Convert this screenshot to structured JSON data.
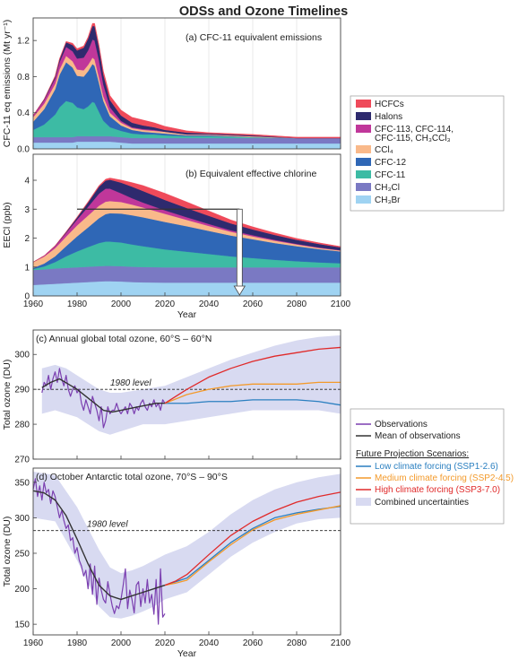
{
  "figure": {
    "title": "ODSs and Ozone Timelines",
    "xlabel": "Year",
    "xticks": [
      "1960",
      "1980",
      "2000",
      "2020",
      "2040",
      "2060",
      "2080",
      "2100"
    ]
  },
  "legend_top": [
    {
      "label": "HCFCs",
      "color": "#ef4a5a"
    },
    {
      "label": "Halons",
      "color": "#2e2a6e"
    },
    {
      "label": "CFC-113, CFC-114,",
      "label2": "CFC-115, CH₃CCl₃",
      "color": "#c0379a"
    },
    {
      "label": "CCl₄",
      "color": "#f9b98a"
    },
    {
      "label": "CFC-12",
      "color": "#2f67b6"
    },
    {
      "label": "CFC-11",
      "color": "#3dbba4"
    },
    {
      "label": "CH₃Cl",
      "color": "#7a79c3"
    },
    {
      "label": "CH₃Br",
      "color": "#9fd3f2"
    }
  ],
  "legend_bottom": {
    "observations": "Observations",
    "mean": "Mean of observations",
    "future_header": "Future Projection Scenarios:",
    "low": "Low climate forcing (SSP1-2.6)",
    "medium": "Medium climate forcing (SSP2-4.5)",
    "high": "High climate forcing (SSP3-7.0)",
    "uncert": "Combined uncertainties"
  },
  "colors": {
    "observations": "#7b3fb0",
    "mean": "#333333",
    "low": "#2a7fc0",
    "medium": "#f39a2b",
    "high": "#e02a2a",
    "uncert": "#d8daf1"
  },
  "chart_data": [
    {
      "id": "a",
      "type": "area",
      "title": "(a) CFC-11 equivalent emissions",
      "ylabel": "CFC-11 eq emissions (Mt yr⁻¹)",
      "xlim": [
        1960,
        2100
      ],
      "ylim": [
        0,
        1.45
      ],
      "yticks": [
        "0.0",
        "0.4",
        "0.8",
        "1.2"
      ],
      "x": [
        1960,
        1965,
        1970,
        1972,
        1975,
        1978,
        1980,
        1983,
        1985,
        1987,
        1988,
        1990,
        1992,
        1995,
        2000,
        2005,
        2010,
        2015,
        2020,
        2030,
        2040,
        2060,
        2080,
        2100
      ],
      "series": [
        {
          "name": "CH₃Br",
          "values": [
            0.07,
            0.07,
            0.07,
            0.07,
            0.07,
            0.07,
            0.08,
            0.08,
            0.08,
            0.08,
            0.08,
            0.08,
            0.08,
            0.08,
            0.07,
            0.06,
            0.06,
            0.06,
            0.06,
            0.06,
            0.06,
            0.06,
            0.06,
            0.06
          ]
        },
        {
          "name": "CH₃Cl",
          "values": [
            0.06,
            0.06,
            0.06,
            0.06,
            0.06,
            0.06,
            0.06,
            0.06,
            0.06,
            0.06,
            0.06,
            0.06,
            0.06,
            0.06,
            0.06,
            0.06,
            0.06,
            0.06,
            0.06,
            0.06,
            0.06,
            0.06,
            0.06,
            0.06
          ]
        },
        {
          "name": "CFC-11",
          "values": [
            0.08,
            0.14,
            0.25,
            0.33,
            0.4,
            0.38,
            0.32,
            0.3,
            0.33,
            0.38,
            0.37,
            0.27,
            0.17,
            0.1,
            0.07,
            0.05,
            0.04,
            0.04,
            0.03,
            0.02,
            0.02,
            0.01,
            0.0,
            0.0
          ]
        },
        {
          "name": "CFC-12",
          "values": [
            0.09,
            0.17,
            0.28,
            0.36,
            0.43,
            0.39,
            0.35,
            0.36,
            0.39,
            0.42,
            0.41,
            0.32,
            0.22,
            0.12,
            0.06,
            0.04,
            0.03,
            0.02,
            0.02,
            0.01,
            0.01,
            0.0,
            0.0,
            0.0
          ]
        },
        {
          "name": "CCl₄",
          "values": [
            0.05,
            0.06,
            0.06,
            0.06,
            0.07,
            0.07,
            0.07,
            0.07,
            0.07,
            0.07,
            0.07,
            0.06,
            0.05,
            0.04,
            0.03,
            0.02,
            0.02,
            0.02,
            0.02,
            0.01,
            0.01,
            0.01,
            0.0,
            0.0
          ]
        },
        {
          "name": "CFC-113, CFC-114, CFC-115, CH₃CCl₃",
          "values": [
            0.02,
            0.04,
            0.06,
            0.08,
            0.1,
            0.11,
            0.12,
            0.14,
            0.16,
            0.2,
            0.21,
            0.19,
            0.13,
            0.06,
            0.02,
            0.01,
            0.01,
            0.01,
            0.0,
            0.0,
            0.0,
            0.0,
            0.0,
            0.0
          ]
        },
        {
          "name": "Halons",
          "values": [
            0.0,
            0.01,
            0.02,
            0.03,
            0.05,
            0.07,
            0.09,
            0.11,
            0.13,
            0.15,
            0.16,
            0.14,
            0.11,
            0.08,
            0.06,
            0.05,
            0.04,
            0.03,
            0.02,
            0.02,
            0.01,
            0.01,
            0.0,
            0.0
          ]
        },
        {
          "name": "HCFCs",
          "values": [
            0.0,
            0.0,
            0.01,
            0.01,
            0.01,
            0.02,
            0.02,
            0.02,
            0.02,
            0.03,
            0.03,
            0.03,
            0.04,
            0.05,
            0.06,
            0.06,
            0.06,
            0.05,
            0.04,
            0.02,
            0.01,
            0.01,
            0.01,
            0.01
          ]
        }
      ]
    },
    {
      "id": "b",
      "type": "area",
      "title": "(b) Equivalent effective chlorine",
      "ylabel": "EECl (ppb)",
      "xlim": [
        1960,
        2100
      ],
      "ylim": [
        0,
        4.9
      ],
      "yticks": [
        "0",
        "1",
        "2",
        "3",
        "4"
      ],
      "marker_level": 3.0,
      "marker_years": [
        1980,
        2054
      ],
      "x": [
        1960,
        1965,
        1970,
        1975,
        1980,
        1985,
        1990,
        1993,
        1995,
        2000,
        2005,
        2010,
        2020,
        2030,
        2040,
        2050,
        2060,
        2070,
        2080,
        2090,
        2100
      ],
      "series": [
        {
          "name": "CH₃Br",
          "values": [
            0.38,
            0.4,
            0.42,
            0.44,
            0.46,
            0.48,
            0.5,
            0.51,
            0.51,
            0.5,
            0.48,
            0.47,
            0.46,
            0.46,
            0.46,
            0.46,
            0.46,
            0.46,
            0.46,
            0.46,
            0.46
          ]
        },
        {
          "name": "CH₃Cl",
          "values": [
            0.52,
            0.52,
            0.53,
            0.53,
            0.53,
            0.53,
            0.53,
            0.53,
            0.53,
            0.53,
            0.53,
            0.53,
            0.53,
            0.53,
            0.53,
            0.53,
            0.53,
            0.53,
            0.53,
            0.53,
            0.53
          ]
        },
        {
          "name": "CFC-11",
          "values": [
            0.03,
            0.1,
            0.22,
            0.4,
            0.55,
            0.68,
            0.8,
            0.84,
            0.84,
            0.82,
            0.77,
            0.72,
            0.62,
            0.54,
            0.46,
            0.38,
            0.32,
            0.26,
            0.21,
            0.17,
            0.14
          ]
        },
        {
          "name": "CFC-12",
          "values": [
            0.04,
            0.1,
            0.2,
            0.35,
            0.52,
            0.68,
            0.86,
            0.95,
            0.98,
            1.0,
            1.01,
            1.0,
            0.95,
            0.88,
            0.8,
            0.72,
            0.65,
            0.58,
            0.52,
            0.46,
            0.41
          ]
        },
        {
          "name": "CCl₄",
          "values": [
            0.2,
            0.24,
            0.28,
            0.33,
            0.38,
            0.41,
            0.43,
            0.43,
            0.42,
            0.4,
            0.37,
            0.34,
            0.28,
            0.22,
            0.17,
            0.13,
            0.1,
            0.08,
            0.06,
            0.04,
            0.03
          ]
        },
        {
          "name": "CFC-113, CFC-114, CFC-115, CH₃CCl₃",
          "values": [
            0.0,
            0.03,
            0.07,
            0.13,
            0.2,
            0.3,
            0.42,
            0.45,
            0.43,
            0.3,
            0.22,
            0.17,
            0.12,
            0.09,
            0.07,
            0.05,
            0.04,
            0.03,
            0.02,
            0.02,
            0.01
          ]
        },
        {
          "name": "Halons",
          "values": [
            0.0,
            0.0,
            0.01,
            0.03,
            0.07,
            0.15,
            0.24,
            0.28,
            0.31,
            0.37,
            0.4,
            0.4,
            0.36,
            0.32,
            0.28,
            0.24,
            0.2,
            0.17,
            0.14,
            0.12,
            0.1
          ]
        },
        {
          "name": "HCFCs",
          "values": [
            0.0,
            0.0,
            0.01,
            0.01,
            0.02,
            0.03,
            0.04,
            0.05,
            0.06,
            0.09,
            0.14,
            0.19,
            0.23,
            0.21,
            0.17,
            0.12,
            0.09,
            0.07,
            0.05,
            0.04,
            0.03
          ]
        }
      ]
    },
    {
      "id": "c",
      "type": "line",
      "title": "(c) Annual global total ozone, 60°S – 60°N",
      "ylabel": "Total ozone (DU)",
      "xlim": [
        1960,
        2100
      ],
      "ylim": [
        270,
        307
      ],
      "yticks": [
        "270",
        "280",
        "290",
        "300"
      ],
      "level_value": 290,
      "level_label": "1980 level",
      "observations": {
        "x": [
          1964,
          1965,
          1966,
          1967,
          1968,
          1969,
          1970,
          1971,
          1972,
          1973,
          1974,
          1975,
          1976,
          1977,
          1978,
          1979,
          1980,
          1981,
          1982,
          1983,
          1984,
          1985,
          1986,
          1987,
          1988,
          1989,
          1990,
          1991,
          1992,
          1993,
          1994,
          1995,
          1996,
          1997,
          1998,
          1999,
          2000,
          2001,
          2002,
          2003,
          2004,
          2005,
          2006,
          2007,
          2008,
          2009,
          2010,
          2011,
          2012,
          2013,
          2014,
          2015,
          2016,
          2017,
          2018,
          2019,
          2020
        ],
        "y": [
          289,
          292,
          291,
          294,
          290,
          293,
          295,
          292,
          296,
          293,
          291,
          294,
          290,
          288,
          290,
          291,
          289,
          290,
          286,
          284,
          287,
          285,
          283,
          288,
          286,
          284,
          281,
          285,
          279,
          281,
          285,
          283,
          284,
          284,
          286,
          284,
          283,
          284,
          285,
          283,
          286,
          285,
          283,
          285,
          284,
          286,
          287,
          285,
          284,
          286,
          285,
          287,
          285,
          286,
          284,
          287,
          286
        ]
      },
      "mean": {
        "x": [
          1964,
          1968,
          1972,
          1976,
          1980,
          1984,
          1988,
          1992,
          1996,
          2000,
          2004,
          2008,
          2012,
          2016,
          2020
        ],
        "y": [
          290.5,
          292,
          293,
          291.5,
          290,
          288,
          286,
          284,
          283.5,
          284,
          284.5,
          285,
          285.5,
          286,
          286
        ]
      },
      "scenarios": {
        "x": [
          2020,
          2030,
          2040,
          2050,
          2060,
          2070,
          2080,
          2090,
          2100
        ],
        "low": [
          286,
          286,
          286.5,
          286.5,
          287,
          287,
          287,
          286.5,
          285.5
        ],
        "medium": [
          286,
          288.5,
          290,
          291,
          291.5,
          291.5,
          291.5,
          292,
          292
        ],
        "high": [
          286,
          290,
          293.5,
          296,
          298,
          299.5,
          300.5,
          301.5,
          302
        ]
      },
      "uncertainty": {
        "x": [
          1964,
          1970,
          1975,
          1980,
          1985,
          1990,
          1995,
          2000,
          2005,
          2010,
          2020,
          2030,
          2040,
          2050,
          2060,
          2070,
          2080,
          2090,
          2100
        ],
        "lower": [
          283,
          284,
          283,
          282,
          280,
          278,
          277,
          278,
          279,
          280,
          280,
          281,
          282,
          283,
          284,
          284,
          284,
          284,
          283
        ],
        "upper": [
          296,
          297,
          296,
          294,
          292,
          290,
          289,
          289,
          289.5,
          290,
          291,
          293.5,
          296,
          298.5,
          300.5,
          302.5,
          304,
          305,
          305.5
        ]
      }
    },
    {
      "id": "d",
      "type": "line",
      "title": "(d) October Antarctic total ozone, 70°S – 90°S",
      "ylabel": "Total ozone (DU)",
      "xlim": [
        1960,
        2100
      ],
      "ylim": [
        135,
        370
      ],
      "yticks": [
        "150",
        "200",
        "250",
        "300",
        "350"
      ],
      "level_value": 282,
      "level_label": "1980 level",
      "observations": {
        "x": [
          1960,
          1961,
          1962,
          1963,
          1964,
          1965,
          1966,
          1967,
          1968,
          1969,
          1970,
          1971,
          1972,
          1973,
          1974,
          1975,
          1976,
          1977,
          1978,
          1979,
          1980,
          1981,
          1982,
          1983,
          1984,
          1985,
          1986,
          1987,
          1988,
          1989,
          1990,
          1991,
          1992,
          1993,
          1994,
          1995,
          1996,
          1997,
          1998,
          1999,
          2000,
          2001,
          2002,
          2003,
          2004,
          2005,
          2006,
          2007,
          2008,
          2009,
          2010,
          2011,
          2012,
          2013,
          2014,
          2015,
          2016,
          2017,
          2018,
          2019,
          2020
        ],
        "y": [
          340,
          355,
          330,
          345,
          325,
          350,
          335,
          340,
          320,
          338,
          330,
          315,
          300,
          310,
          296,
          285,
          290,
          268,
          272,
          250,
          258,
          240,
          232,
          218,
          226,
          200,
          235,
          192,
          232,
          178,
          215,
          198,
          185,
          180,
          210,
          192,
          176,
          165,
          176,
          172,
          185,
          205,
          228,
          172,
          198,
          185,
          166,
          205,
          210,
          175,
          200,
          180,
          213,
          180,
          192,
          164,
          213,
          150,
          228,
          160,
          165
        ]
      },
      "mean": {
        "x": [
          1960,
          1965,
          1970,
          1975,
          1980,
          1985,
          1990,
          1995,
          2000,
          2005,
          2010,
          2015,
          2020
        ],
        "y": [
          338,
          335,
          325,
          303,
          270,
          235,
          205,
          190,
          185,
          190,
          195,
          200,
          205
        ]
      },
      "scenarios": {
        "x": [
          2020,
          2025,
          2030,
          2040,
          2050,
          2060,
          2070,
          2080,
          2090,
          2100
        ],
        "low": [
          205,
          210,
          215,
          240,
          265,
          285,
          300,
          307,
          312,
          316
        ],
        "medium": [
          205,
          208,
          212,
          238,
          262,
          283,
          297,
          305,
          311,
          317
        ],
        "high": [
          205,
          211,
          220,
          248,
          275,
          295,
          310,
          322,
          330,
          336
        ]
      },
      "uncertainty": {
        "x": [
          1960,
          1970,
          1980,
          1990,
          1995,
          2000,
          2005,
          2010,
          2015,
          2020,
          2030,
          2040,
          2050,
          2060,
          2070,
          2080,
          2090,
          2100
        ],
        "lower": [
          300,
          295,
          240,
          175,
          160,
          158,
          162,
          168,
          175,
          185,
          195,
          220,
          245,
          265,
          280,
          292,
          298,
          300
        ],
        "upper": [
          365,
          360,
          315,
          255,
          230,
          222,
          226,
          232,
          240,
          248,
          260,
          280,
          305,
          325,
          340,
          350,
          357,
          362
        ]
      }
    }
  ]
}
